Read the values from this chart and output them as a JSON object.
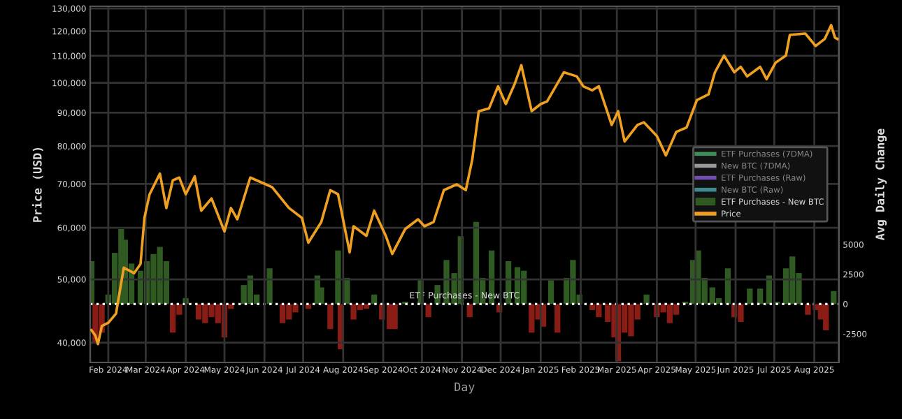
{
  "chart_data": {
    "type": "line",
    "xlabel": "Day",
    "ylabel": "Price (USD)",
    "y2label": "Avg Daily Change",
    "log": "y",
    "grid": true,
    "legend": "right",
    "line_style": "solid",
    "marker": "none",
    "xlim": [
      "2024-01-18",
      "2025-08-20"
    ],
    "xticks": [
      {
        "value": "2024-02-01",
        "label": "Feb 2024"
      },
      {
        "value": "2024-03-01",
        "label": "Mar 2024"
      },
      {
        "value": "2024-04-01",
        "label": "Apr 2024"
      },
      {
        "value": "2024-05-01",
        "label": "May 2024"
      },
      {
        "value": "2024-06-01",
        "label": "Jun 2024"
      },
      {
        "value": "2024-07-01",
        "label": "Jul 2024"
      },
      {
        "value": "2024-08-01",
        "label": "Aug 2024"
      },
      {
        "value": "2024-09-01",
        "label": "Sep 2024"
      },
      {
        "value": "2024-10-01",
        "label": "Oct 2024"
      },
      {
        "value": "2024-11-01",
        "label": "Nov 2024"
      },
      {
        "value": "2024-12-01",
        "label": "Dec 2024"
      },
      {
        "value": "2025-01-01",
        "label": "Jan 2025"
      },
      {
        "value": "2025-02-01",
        "label": "Feb 2025"
      },
      {
        "value": "2025-03-01",
        "label": "Mar 2025"
      },
      {
        "value": "2025-04-01",
        "label": "Apr 2025"
      },
      {
        "value": "2025-05-01",
        "label": "May 2025"
      },
      {
        "value": "2025-06-01",
        "label": "Jun 2025"
      },
      {
        "value": "2025-07-01",
        "label": "Jul 2025"
      },
      {
        "value": "2025-08-01",
        "label": "Aug 2025"
      }
    ],
    "ylim": [
      37300,
      131000
    ],
    "yticks": [
      {
        "value": 40000,
        "label": "40,000"
      },
      {
        "value": 50000,
        "label": "50,000"
      },
      {
        "value": 60000,
        "label": "60,000"
      },
      {
        "value": 70000,
        "label": "70,000"
      },
      {
        "value": 80000,
        "label": "80,000"
      },
      {
        "value": 90000,
        "label": "90,000"
      },
      {
        "value": 100000,
        "label": "100,000"
      },
      {
        "value": 110000,
        "label": "110,000"
      },
      {
        "value": 120000,
        "label": "120,000"
      },
      {
        "value": 130000,
        "label": "130,000"
      }
    ],
    "y2lim": [
      -4900,
      25000
    ],
    "y2ticks": [
      -2500,
      0,
      2500,
      5000
    ],
    "ref_lines": [
      {
        "axis": "y2",
        "value": 0,
        "label": "ETF Purchases - New BTC",
        "color": "#ffffff",
        "line_style": "dotted"
      }
    ],
    "series": [
      {
        "name": "ETF Purchases (7DMA)",
        "color": "#3f8f5a"
      },
      {
        "name": "New BTC (7DMA)",
        "color": "#9a9a9a"
      },
      {
        "name": "ETF Purchases (Raw)",
        "color": "#6f4fb0"
      },
      {
        "name": "New BTC (Raw)",
        "color": "#3f8a90"
      },
      {
        "name": "ETF Purchases - New BTC",
        "type": "bar",
        "axis": "y2",
        "color": "#2f5a22",
        "x": [
          "2024-01-19",
          "2024-01-22",
          "2024-01-27",
          "2024-02-01",
          "2024-02-06",
          "2024-02-11",
          "2024-02-14",
          "2024-02-19",
          "2024-02-26",
          "2024-03-02",
          "2024-03-07",
          "2024-03-12",
          "2024-03-17",
          "2024-03-22",
          "2024-03-27",
          "2024-04-01",
          "2024-04-11",
          "2024-04-16",
          "2024-04-21",
          "2024-04-26",
          "2024-05-01",
          "2024-05-06",
          "2024-05-16",
          "2024-05-21",
          "2024-05-26",
          "2024-06-05",
          "2024-06-15",
          "2024-06-20",
          "2024-06-25",
          "2024-07-05",
          "2024-07-12",
          "2024-07-15",
          "2024-07-22",
          "2024-07-28",
          "2024-07-30",
          "2024-08-04",
          "2024-08-09",
          "2024-08-14",
          "2024-08-19",
          "2024-08-25",
          "2024-08-31",
          "2024-09-06",
          "2024-09-10",
          "2024-09-18",
          "2024-09-30",
          "2024-10-06",
          "2024-10-13",
          "2024-10-20",
          "2024-10-26",
          "2024-10-31",
          "2024-11-07",
          "2024-11-12",
          "2024-11-17",
          "2024-11-24",
          "2024-11-30",
          "2024-12-07",
          "2024-12-14",
          "2024-12-19",
          "2024-12-25",
          "2024-12-30",
          "2025-01-03",
          "2025-01-09",
          "2025-01-14",
          "2025-01-21",
          "2025-01-26",
          "2025-01-31",
          "2025-02-10",
          "2025-02-15",
          "2025-02-22",
          "2025-02-27",
          "2025-03-02",
          "2025-03-07",
          "2025-03-12",
          "2025-03-17",
          "2025-03-24",
          "2025-04-01",
          "2025-04-06",
          "2025-04-11",
          "2025-04-16",
          "2025-04-23",
          "2025-04-29",
          "2025-05-03",
          "2025-05-08",
          "2025-05-14",
          "2025-05-19",
          "2025-05-26",
          "2025-05-31",
          "2025-06-05",
          "2025-06-12",
          "2025-06-20",
          "2025-06-27",
          "2025-07-03",
          "2025-07-10",
          "2025-07-15",
          "2025-07-20",
          "2025-07-27",
          "2025-08-02",
          "2025-08-06",
          "2025-08-10",
          "2025-08-16"
        ],
        "values": [
          3600,
          -3300,
          -2400,
          800,
          4300,
          6300,
          5400,
          3400,
          2800,
          3600,
          4200,
          4800,
          3600,
          -2400,
          -900,
          500,
          -1300,
          -1600,
          -1100,
          -1600,
          -2800,
          -400,
          1600,
          2400,
          800,
          3000,
          -1600,
          -1300,
          -700,
          -400,
          2400,
          1400,
          -2100,
          4500,
          -3800,
          2200,
          -1300,
          -500,
          -400,
          800,
          -1300,
          -2100,
          -2100,
          200,
          2000,
          -1100,
          1600,
          3700,
          2600,
          5700,
          -1100,
          6900,
          2200,
          4500,
          -700,
          3600,
          3100,
          2800,
          -2400,
          -1300,
          -1900,
          2000,
          -2400,
          2200,
          3700,
          800,
          -500,
          -1100,
          -1500,
          -2800,
          -4800,
          -2400,
          -2700,
          -1300,
          800,
          -1100,
          -700,
          -1600,
          -900,
          200,
          3700,
          4500,
          2200,
          1400,
          500,
          3000,
          -1100,
          -1500,
          1300,
          1300,
          2400,
          200,
          3000,
          4000,
          2600,
          -900,
          -500,
          -1300,
          -2200,
          1100
        ],
        "colors": [
          "#2f5a22",
          "#8a1c16",
          "#8a1c16",
          "#2f5a22",
          "#2f5a22",
          "#2f5a22",
          "#2f5a22",
          "#2f5a22",
          "#2f5a22",
          "#2f5a22",
          "#2f5a22",
          "#2f5a22",
          "#2f5a22",
          "#8a1c16",
          "#8a1c16",
          "#2f5a22",
          "#8a1c16",
          "#8a1c16",
          "#8a1c16",
          "#8a1c16",
          "#8a1c16",
          "#8a1c16",
          "#2f5a22",
          "#2f5a22",
          "#2f5a22",
          "#2f5a22",
          "#8a1c16",
          "#8a1c16",
          "#8a1c16",
          "#8a1c16",
          "#2f5a22",
          "#2f5a22",
          "#8a1c16",
          "#2f5a22",
          "#8a1c16",
          "#2f5a22",
          "#8a1c16",
          "#8a1c16",
          "#8a1c16",
          "#2f5a22",
          "#8a1c16",
          "#8a1c16",
          "#8a1c16",
          "#2f5a22",
          "#2f5a22",
          "#8a1c16",
          "#2f5a22",
          "#2f5a22",
          "#2f5a22",
          "#2f5a22",
          "#8a1c16",
          "#2f5a22",
          "#2f5a22",
          "#2f5a22",
          "#8a1c16",
          "#2f5a22",
          "#2f5a22",
          "#2f5a22",
          "#8a1c16",
          "#8a1c16",
          "#8a1c16",
          "#2f5a22",
          "#8a1c16",
          "#2f5a22",
          "#2f5a22",
          "#2f5a22",
          "#8a1c16",
          "#8a1c16",
          "#8a1c16",
          "#8a1c16",
          "#8a1c16",
          "#8a1c16",
          "#8a1c16",
          "#8a1c16",
          "#2f5a22",
          "#8a1c16",
          "#8a1c16",
          "#8a1c16",
          "#8a1c16",
          "#2f5a22",
          "#2f5a22",
          "#2f5a22",
          "#2f5a22",
          "#2f5a22",
          "#2f5a22",
          "#2f5a22",
          "#8a1c16",
          "#8a1c16",
          "#2f5a22",
          "#2f5a22",
          "#2f5a22",
          "#2f5a22",
          "#2f5a22",
          "#2f5a22",
          "#2f5a22",
          "#8a1c16",
          "#8a1c16",
          "#8a1c16",
          "#8a1c16",
          "#2f5a22"
        ]
      },
      {
        "name": "Price",
        "color": "#f0a020",
        "x": [
          "2024-01-19",
          "2024-01-22",
          "2024-01-24",
          "2024-01-27",
          "2024-02-01",
          "2024-02-07",
          "2024-02-13",
          "2024-02-21",
          "2024-02-26",
          "2024-02-29",
          "2024-03-04",
          "2024-03-12",
          "2024-03-17",
          "2024-03-22",
          "2024-03-27",
          "2024-04-01",
          "2024-04-08",
          "2024-04-13",
          "2024-04-21",
          "2024-05-01",
          "2024-05-06",
          "2024-05-11",
          "2024-05-21",
          "2024-05-31",
          "2024-06-07",
          "2024-06-20",
          "2024-06-30",
          "2024-07-05",
          "2024-07-15",
          "2024-07-22",
          "2024-07-28",
          "2024-08-06",
          "2024-08-09",
          "2024-08-19",
          "2024-08-25",
          "2024-09-03",
          "2024-09-08",
          "2024-09-18",
          "2024-09-28",
          "2024-10-03",
          "2024-10-10",
          "2024-10-18",
          "2024-10-28",
          "2024-11-04",
          "2024-11-09",
          "2024-11-14",
          "2024-11-22",
          "2024-11-29",
          "2024-12-05",
          "2024-12-12",
          "2024-12-17",
          "2024-12-25",
          "2025-01-01",
          "2025-01-06",
          "2025-01-14",
          "2025-01-19",
          "2025-01-29",
          "2025-02-03",
          "2025-02-10",
          "2025-02-15",
          "2025-02-25",
          "2025-03-02",
          "2025-03-07",
          "2025-03-17",
          "2025-03-22",
          "2025-04-01",
          "2025-04-08",
          "2025-04-16",
          "2025-04-24",
          "2025-05-02",
          "2025-05-11",
          "2025-05-16",
          "2025-05-23",
          "2025-05-31",
          "2025-06-05",
          "2025-06-10",
          "2025-06-20",
          "2025-06-25",
          "2025-07-02",
          "2025-07-10",
          "2025-07-13",
          "2025-07-25",
          "2025-08-02",
          "2025-08-09",
          "2025-08-14",
          "2025-08-17",
          "2025-08-19"
        ],
        "values": [
          41800,
          41000,
          39800,
          42400,
          42900,
          44300,
          52100,
          51100,
          52800,
          62100,
          67500,
          72600,
          64300,
          70900,
          71600,
          67500,
          71900,
          63700,
          66500,
          59200,
          64300,
          61800,
          71600,
          70200,
          69200,
          64300,
          62100,
          56900,
          61200,
          68500,
          67500,
          55000,
          60300,
          58300,
          63700,
          58300,
          54700,
          59700,
          61800,
          60300,
          61200,
          68500,
          69900,
          68500,
          76300,
          90500,
          91400,
          98800,
          92800,
          99800,
          106400,
          90500,
          92800,
          93700,
          99800,
          103800,
          102300,
          98800,
          97400,
          98800,
          86200,
          90500,
          81300,
          86200,
          87000,
          82900,
          77400,
          84100,
          85400,
          94100,
          96000,
          103800,
          110100,
          103800,
          105800,
          102300,
          105800,
          101300,
          107400,
          110100,
          118400,
          119000,
          113900,
          116700,
          122600,
          117300,
          116700
        ]
      }
    ]
  }
}
